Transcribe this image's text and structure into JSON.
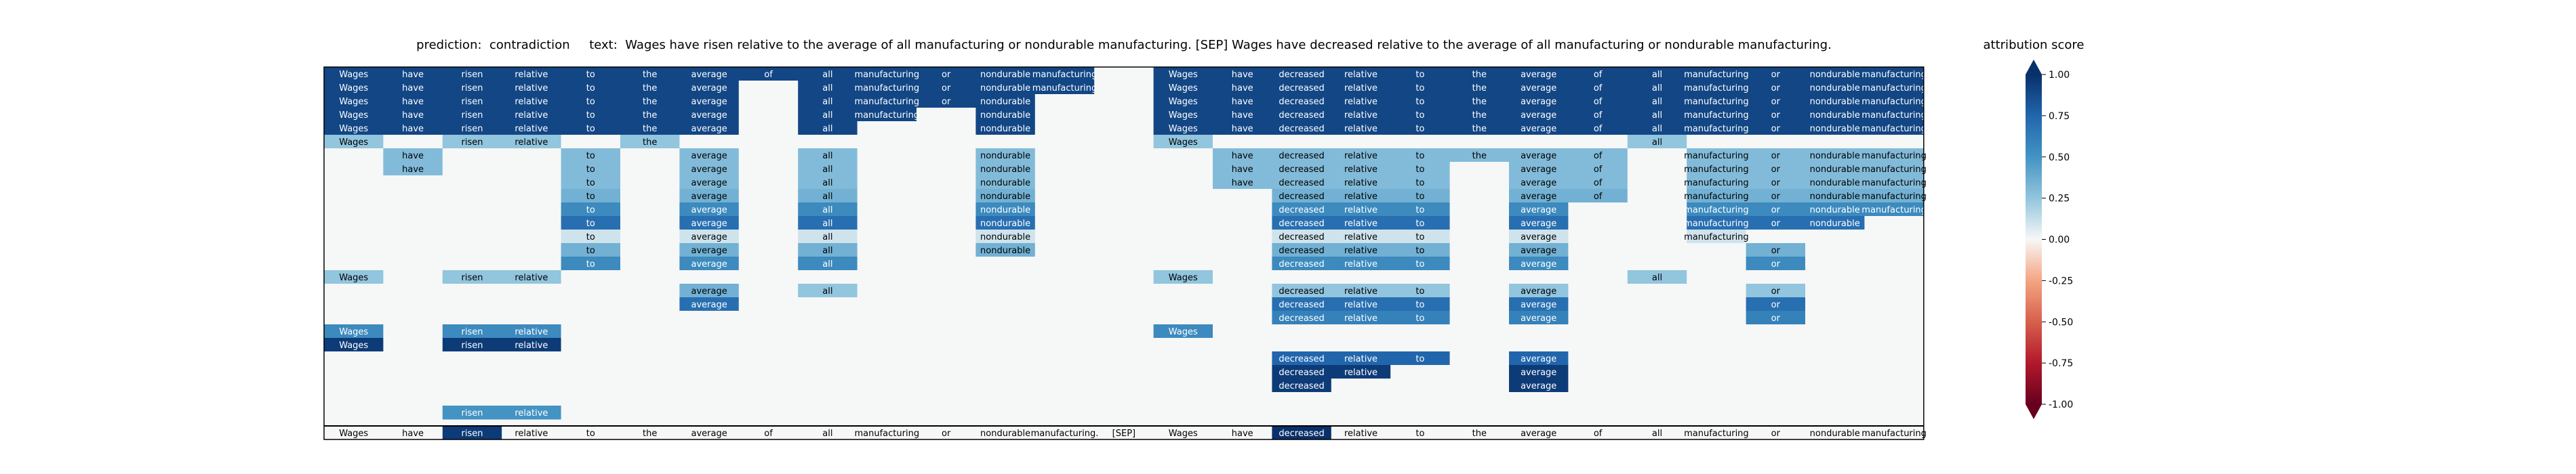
{
  "title": {
    "prediction_label": "prediction:",
    "prediction_value": "contradiction",
    "text_label": "text:",
    "text_value": "Wages have risen relative to the average of all manufacturing or nondurable manufacturing. [SEP] Wages have decreased relative to the average of all manufacturing or nondurable manufacturing."
  },
  "colorbar": {
    "title": "attribution score",
    "ticks": [
      "1.00",
      "0.75",
      "0.50",
      "0.25",
      "0.00",
      "-0.25",
      "-0.50",
      "-0.75",
      "-1.00"
    ],
    "tick_values": [
      1.0,
      0.75,
      0.5,
      0.25,
      0.0,
      -0.25,
      -0.5,
      -0.75,
      -1.0
    ],
    "colors": [
      "#08306b",
      "#2166ac",
      "#4393c3",
      "#92c5de",
      "#f7f7f7",
      "#f4a582",
      "#d6604d",
      "#b2182b",
      "#67001f"
    ]
  },
  "chart_data": {
    "type": "heatmap",
    "tokens": [
      "Wages",
      "have",
      "risen",
      "relative",
      "to",
      "the",
      "average",
      "of",
      "all",
      "manufacturing",
      "or",
      "nondurable",
      "manufacturing.",
      "[SEP]",
      "Wages",
      "have",
      "decreased",
      "relative",
      "to",
      "the",
      "average",
      "of",
      "all",
      "manufacturing",
      "or",
      "nondurable",
      "manufacturing"
    ],
    "row_tokens": [
      "Wages",
      "have",
      "risen",
      "relative",
      "to",
      "the",
      "average",
      "of",
      "all",
      "manufacturing",
      "or",
      "nondurable",
      "manufacturing",
      "",
      "Wages",
      "have",
      "decreased",
      "relative",
      "to",
      "the",
      "average",
      "of",
      "all",
      "manufacturing",
      "or",
      "nondurable",
      "manufacturing"
    ],
    "value_range": [
      -1.0,
      1.0
    ],
    "rows": [
      [
        0.9,
        0.9,
        0.9,
        0.9,
        0.9,
        0.9,
        0.9,
        0.9,
        0.9,
        0.9,
        0.9,
        0.9,
        0.9,
        0,
        0.9,
        0.9,
        0.9,
        0.9,
        0.9,
        0.9,
        0.9,
        0.9,
        0.9,
        0.9,
        0.9,
        0.9,
        0.9
      ],
      [
        0.9,
        0.9,
        0.9,
        0.9,
        0.9,
        0.9,
        0.9,
        0,
        0.9,
        0.9,
        0.9,
        0.9,
        0.9,
        0,
        0.9,
        0.9,
        0.9,
        0.9,
        0.9,
        0.9,
        0.9,
        0.9,
        0.9,
        0.9,
        0.9,
        0.9,
        0.9
      ],
      [
        0.9,
        0.9,
        0.9,
        0.9,
        0.9,
        0.9,
        0.9,
        0,
        0.9,
        0.9,
        0.9,
        0.9,
        0,
        0,
        0.9,
        0.9,
        0.9,
        0.9,
        0.9,
        0.9,
        0.9,
        0.9,
        0.9,
        0.9,
        0.9,
        0.9,
        0.9
      ],
      [
        0.9,
        0.9,
        0.9,
        0.9,
        0.9,
        0.9,
        0.9,
        0,
        0.9,
        0.9,
        0,
        0.9,
        0,
        0,
        0.9,
        0.9,
        0.9,
        0.9,
        0.9,
        0.9,
        0.9,
        0.9,
        0.9,
        0.9,
        0.9,
        0.9,
        0.9
      ],
      [
        0.9,
        0.9,
        0.9,
        0.9,
        0.9,
        0.9,
        0.9,
        0,
        0.9,
        0,
        0,
        0.9,
        0,
        0,
        0.9,
        0.9,
        0.9,
        0.9,
        0.9,
        0.9,
        0.9,
        0.9,
        0.9,
        0.9,
        0.9,
        0.9,
        0.9
      ],
      [
        0.25,
        0,
        0.25,
        0.25,
        0,
        0.25,
        0,
        0,
        0,
        0,
        0,
        0,
        0,
        0,
        0.25,
        0,
        0,
        0,
        0,
        0,
        0,
        0,
        0.25,
        0,
        0,
        0,
        0
      ],
      [
        0,
        0.3,
        0,
        0,
        0.3,
        0,
        0.3,
        0,
        0.3,
        0,
        0,
        0.3,
        0,
        0,
        0,
        0.3,
        0.3,
        0.3,
        0.3,
        0.3,
        0.3,
        0.3,
        0,
        0.3,
        0.3,
        0.3,
        0.3
      ],
      [
        0,
        0.3,
        0,
        0,
        0.3,
        0,
        0.3,
        0,
        0.3,
        0,
        0,
        0.3,
        0,
        0,
        0,
        0.3,
        0.3,
        0.3,
        0.3,
        0,
        0.3,
        0.3,
        0,
        0.3,
        0.3,
        0.3,
        0.3
      ],
      [
        0,
        0,
        0,
        0,
        0.3,
        0,
        0.3,
        0,
        0.3,
        0,
        0,
        0.3,
        0,
        0,
        0,
        0.3,
        0.3,
        0.3,
        0.3,
        0,
        0.3,
        0.3,
        0,
        0.3,
        0.3,
        0.3,
        0.3
      ],
      [
        0,
        0,
        0,
        0,
        0.35,
        0,
        0.35,
        0,
        0.35,
        0,
        0,
        0.35,
        0,
        0,
        0,
        0,
        0.35,
        0.35,
        0.35,
        0,
        0.35,
        0.35,
        0,
        0.35,
        0.35,
        0.35,
        0.35
      ],
      [
        0,
        0,
        0,
        0,
        0.55,
        0,
        0.55,
        0,
        0.55,
        0,
        0,
        0.55,
        0,
        0,
        0,
        0,
        0.55,
        0.55,
        0.55,
        0,
        0.55,
        0,
        0,
        0.55,
        0.55,
        0.55,
        0.55
      ],
      [
        0,
        0,
        0,
        0,
        0.7,
        0,
        0.7,
        0,
        0.7,
        0,
        0,
        0.7,
        0,
        0,
        0,
        0,
        0.7,
        0.7,
        0.7,
        0,
        0.7,
        0,
        0,
        0.7,
        0.7,
        0.7,
        0
      ],
      [
        0,
        0,
        0,
        0,
        0.1,
        0,
        0.1,
        0,
        0.1,
        0,
        0,
        0.1,
        0,
        0,
        0,
        0,
        0.1,
        0.1,
        0.1,
        0,
        0.1,
        0,
        0,
        0.1,
        0,
        0,
        0
      ],
      [
        0,
        0,
        0,
        0,
        0.35,
        0,
        0.35,
        0,
        0.35,
        0,
        0,
        0.35,
        0,
        0,
        0,
        0,
        0.35,
        0.35,
        0.35,
        0,
        0.35,
        0,
        0,
        0,
        0.35,
        0,
        0
      ],
      [
        0,
        0,
        0,
        0,
        0.55,
        0,
        0.55,
        0,
        0.55,
        0,
        0,
        0,
        0,
        0,
        0,
        0,
        0.55,
        0.55,
        0.55,
        0,
        0.55,
        0,
        0,
        0,
        0.55,
        0,
        0
      ],
      [
        0.25,
        0,
        0.25,
        0.25,
        0,
        0,
        0,
        0,
        0,
        0,
        0,
        0,
        0,
        0,
        0.25,
        0,
        0,
        0,
        0,
        0,
        0,
        0,
        0.25,
        0,
        0,
        0,
        0
      ],
      [
        0,
        0,
        0,
        0,
        0,
        0,
        0.35,
        0,
        0.25,
        0,
        0,
        0,
        0,
        0,
        0,
        0,
        0.25,
        0.25,
        0.25,
        0,
        0.25,
        0,
        0,
        0,
        0.25,
        0,
        0
      ],
      [
        0,
        0,
        0,
        0,
        0,
        0,
        0.7,
        0,
        0,
        0,
        0,
        0,
        0,
        0,
        0,
        0,
        0.7,
        0.7,
        0.7,
        0,
        0.7,
        0,
        0,
        0,
        0.7,
        0,
        0
      ],
      [
        0,
        0,
        0,
        0,
        0,
        0,
        0,
        0,
        0,
        0,
        0,
        0,
        0,
        0,
        0,
        0,
        0.6,
        0.6,
        0.6,
        0,
        0.6,
        0,
        0,
        0,
        0.6,
        0,
        0
      ],
      [
        0.55,
        0,
        0.55,
        0.55,
        0,
        0,
        0,
        0,
        0,
        0,
        0,
        0,
        0,
        0,
        0.55,
        0,
        0,
        0,
        0,
        0,
        0,
        0,
        0,
        0,
        0,
        0,
        0
      ],
      [
        0.95,
        0,
        0.95,
        0.95,
        0,
        0,
        0,
        0,
        0,
        0,
        0,
        0,
        0,
        0,
        0,
        0,
        0,
        0,
        0,
        0,
        0,
        0,
        0,
        0,
        0,
        0,
        0
      ],
      [
        0,
        0,
        0,
        0,
        0,
        0,
        0,
        0,
        0,
        0,
        0,
        0,
        0,
        0,
        0,
        0,
        0.75,
        0.75,
        0.75,
        0,
        0.75,
        0,
        0,
        0,
        0,
        0,
        0
      ],
      [
        0,
        0,
        0,
        0,
        0,
        0,
        0,
        0,
        0,
        0,
        0,
        0,
        0,
        0,
        0,
        0,
        0.95,
        0.95,
        0,
        0,
        0.95,
        0,
        0,
        0,
        0,
        0,
        0
      ],
      [
        0,
        0,
        0,
        0,
        0,
        0,
        0,
        0,
        0,
        0,
        0,
        0,
        0,
        0,
        0,
        0,
        0.95,
        0,
        0,
        0,
        0.95,
        0,
        0,
        0,
        0,
        0,
        0
      ],
      [
        0,
        0,
        0,
        0,
        0,
        0,
        0,
        0,
        0,
        0,
        0,
        0,
        0,
        0,
        0,
        0,
        0,
        0,
        0,
        0,
        0,
        0,
        0,
        0,
        0,
        0,
        0
      ],
      [
        0,
        0,
        0.5,
        0.5,
        0,
        0,
        0,
        0,
        0,
        0,
        0,
        0,
        0,
        0,
        0,
        0,
        0,
        0,
        0,
        0,
        0,
        0,
        0,
        0,
        0,
        0,
        0
      ]
    ],
    "summary_row": [
      0,
      0,
      0.95,
      0,
      0,
      0,
      0,
      0,
      0,
      0,
      0,
      0,
      0,
      0,
      0,
      0,
      1.0,
      0,
      0,
      0,
      0,
      0,
      0,
      0,
      0,
      0,
      0
    ]
  }
}
